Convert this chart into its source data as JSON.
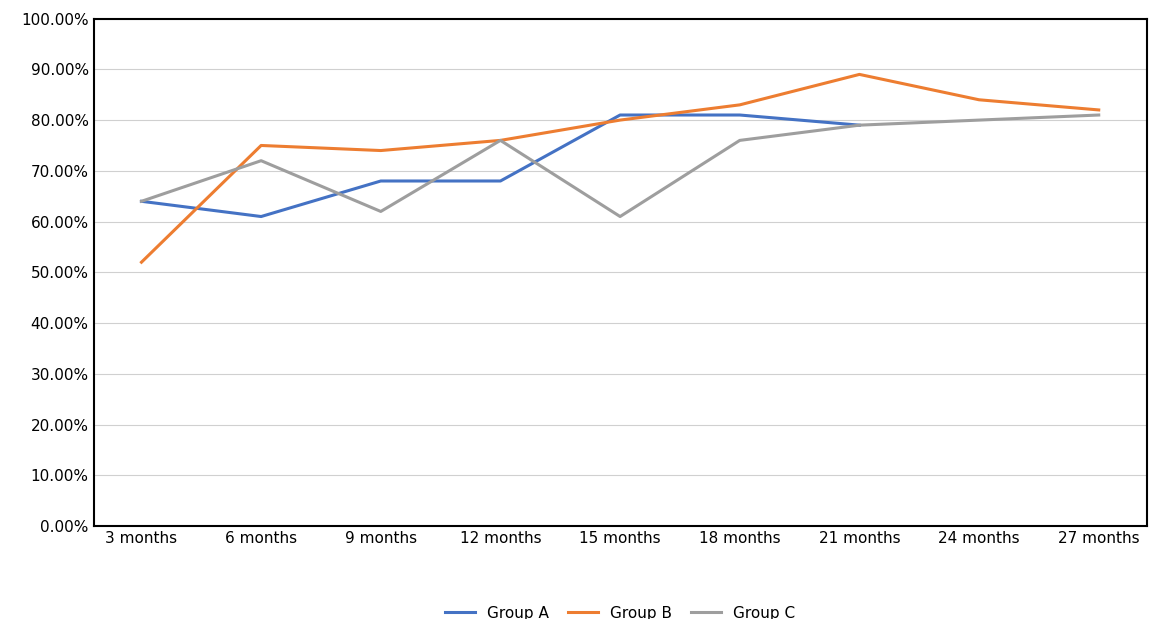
{
  "x_labels": [
    "3 months",
    "6 months",
    "9 months",
    "12 months",
    "15 months",
    "18 months",
    "21 months",
    "24 months",
    "27 months"
  ],
  "group_a": [
    0.64,
    0.61,
    0.68,
    0.68,
    0.81,
    0.81,
    0.79,
    null,
    null
  ],
  "group_b": [
    0.52,
    0.75,
    0.74,
    0.76,
    0.8,
    0.83,
    0.89,
    0.84,
    0.82
  ],
  "group_c": [
    0.64,
    0.72,
    0.62,
    0.76,
    0.61,
    0.76,
    0.79,
    0.8,
    0.81
  ],
  "color_a": "#4472C4",
  "color_b": "#ED7D31",
  "color_c": "#9E9E9E",
  "legend_a": "Group A",
  "legend_b": "Group B",
  "legend_c": "Group C",
  "ylim": [
    0.0,
    1.0
  ],
  "yticks": [
    0.0,
    0.1,
    0.2,
    0.3,
    0.4,
    0.5,
    0.6,
    0.7,
    0.8,
    0.9,
    1.0
  ],
  "background_color": "#ffffff",
  "plot_bg_color": "#ffffff",
  "grid_color": "#d0d0d0",
  "line_width": 2.2,
  "font_size_ticks": 11,
  "font_size_legend": 11
}
